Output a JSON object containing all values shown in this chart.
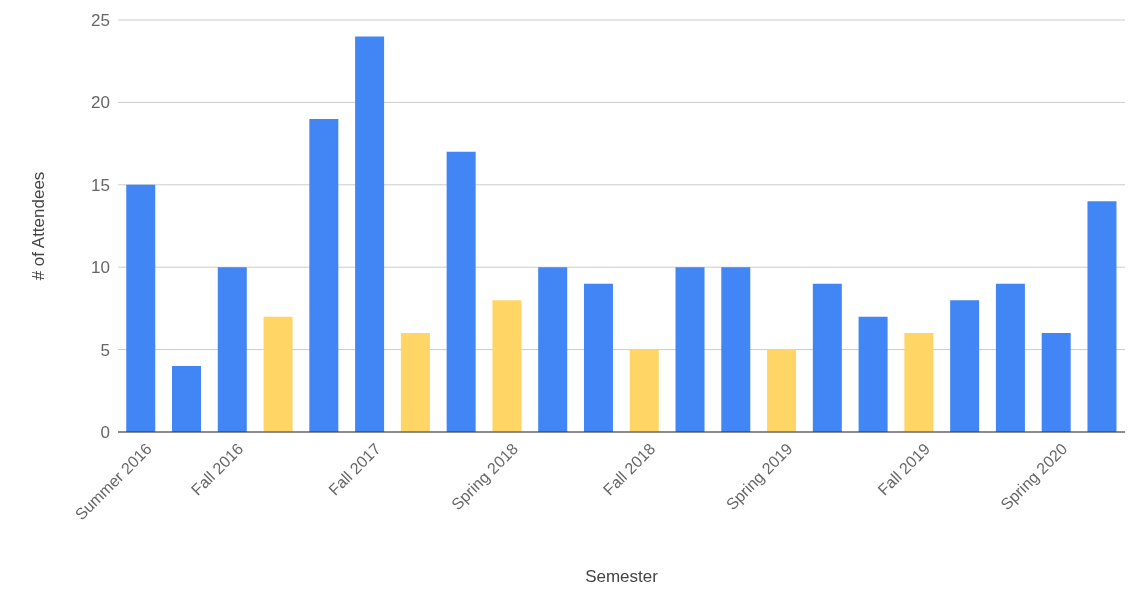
{
  "chart_data": {
    "type": "bar",
    "xlabel": "Semester",
    "ylabel": "# of Attendees",
    "categories": [
      "Summer 2016",
      null,
      "Fall 2016",
      null,
      null,
      "Fall 2017",
      null,
      null,
      "Spring 2018",
      null,
      null,
      "Fall 2018",
      null,
      null,
      "Spring 2019",
      null,
      null,
      "Fall 2019",
      null,
      null,
      "Spring 2020",
      null
    ],
    "values": [
      15,
      4,
      10,
      7,
      19,
      24,
      6,
      17,
      8,
      10,
      9,
      5,
      10,
      10,
      5,
      9,
      7,
      6,
      8,
      9,
      6,
      14
    ],
    "colors": [
      "#4285f4",
      "#4285f4",
      "#4285f4",
      "#ffd666",
      "#4285f4",
      "#4285f4",
      "#ffd666",
      "#4285f4",
      "#ffd666",
      "#4285f4",
      "#4285f4",
      "#ffd666",
      "#4285f4",
      "#4285f4",
      "#ffd666",
      "#4285f4",
      "#4285f4",
      "#ffd666",
      "#4285f4",
      "#4285f4",
      "#4285f4",
      "#4285f4"
    ],
    "ylim": [
      0,
      25
    ],
    "yticks": [
      0,
      5,
      10,
      15,
      20,
      25
    ],
    "grid": "y",
    "legend": false
  }
}
